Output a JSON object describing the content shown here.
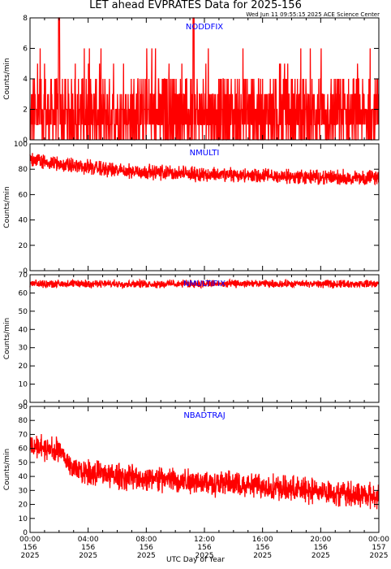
{
  "title": "LET ahead EVPRATES Data for 2025-156",
  "timestamp": "Wed Jun 11 09:55:15 2025 ACE Science Center",
  "xlabel": "UTC Day of Year",
  "colors": {
    "series": "#ff0000",
    "panel_label": "#0000ff",
    "axis": "#000000"
  },
  "chart_data": [
    {
      "type": "line",
      "panel_label": "NODDFIX",
      "ylabel": "Counts/min",
      "ylim": [
        0,
        8
      ],
      "yticks": [
        0,
        2,
        4,
        6,
        8
      ],
      "ytick_labels": [
        "0",
        "2",
        "4",
        "6",
        "8"
      ],
      "x_range_hours": [
        0,
        24
      ],
      "series": [
        {
          "values_summary": {
            "typical_low": 0,
            "typical_high": 4,
            "mean": 1.8,
            "max": 8
          }
        }
      ],
      "notes": "Noisy step data between 0 and 4 counts/min with spikes to 8 near 02:00 and 11:15"
    },
    {
      "type": "line",
      "panel_label": "NMULTI",
      "ylabel": "Counts/min",
      "ylim": [
        0,
        100
      ],
      "yticks": [
        0,
        20,
        40,
        60,
        80,
        100
      ],
      "ytick_labels": [
        "0",
        "20",
        "40",
        "60",
        "80",
        "100"
      ],
      "x_range_hours": [
        0,
        24
      ],
      "series": [
        {
          "trend": [
            [
              0,
              88
            ],
            [
              2,
              84
            ],
            [
              6,
              79
            ],
            [
              12,
              76
            ],
            [
              18,
              74
            ],
            [
              24,
              73
            ]
          ],
          "noise": 7
        }
      ]
    },
    {
      "type": "line",
      "panel_label": "NMULTIFIX",
      "ylabel": "Counts/min",
      "ylim": [
        0,
        70
      ],
      "yticks": [
        0,
        10,
        20,
        30,
        40,
        50,
        60,
        70
      ],
      "ytick_labels": [
        "0",
        "10",
        "20",
        "30",
        "40",
        "50",
        "60",
        "70"
      ],
      "x_range_hours": [
        0,
        24
      ],
      "series": [
        {
          "trend": [
            [
              0,
              65
            ],
            [
              24,
              65
            ]
          ],
          "noise": 2.5
        }
      ]
    },
    {
      "type": "line",
      "panel_label": "NBADTRAJ",
      "ylabel": "Counts/min",
      "ylim": [
        0,
        90
      ],
      "yticks": [
        0,
        10,
        20,
        30,
        40,
        50,
        60,
        70,
        80,
        90
      ],
      "ytick_labels": [
        "0",
        "10",
        "20",
        "30",
        "40",
        "50",
        "60",
        "70",
        "80",
        "90"
      ],
      "x_range_hours": [
        0,
        24
      ],
      "series": [
        {
          "trend": [
            [
              0,
              62
            ],
            [
              2,
              58
            ],
            [
              3,
              45
            ],
            [
              6,
              40
            ],
            [
              12,
              36
            ],
            [
              18,
              31
            ],
            [
              24,
              26
            ]
          ],
          "noise": 11
        }
      ]
    }
  ],
  "x_ticks": [
    {
      "time": "00:00",
      "doy": "156",
      "year": "2025"
    },
    {
      "time": "04:00",
      "doy": "156",
      "year": "2025"
    },
    {
      "time": "08:00",
      "doy": "156",
      "year": "2025"
    },
    {
      "time": "12:00",
      "doy": "156",
      "year": "2025"
    },
    {
      "time": "16:00",
      "doy": "156",
      "year": "2025"
    },
    {
      "time": "20:00",
      "doy": "156",
      "year": "2025"
    },
    {
      "time": "00:00",
      "doy": "157",
      "year": "2025"
    }
  ]
}
